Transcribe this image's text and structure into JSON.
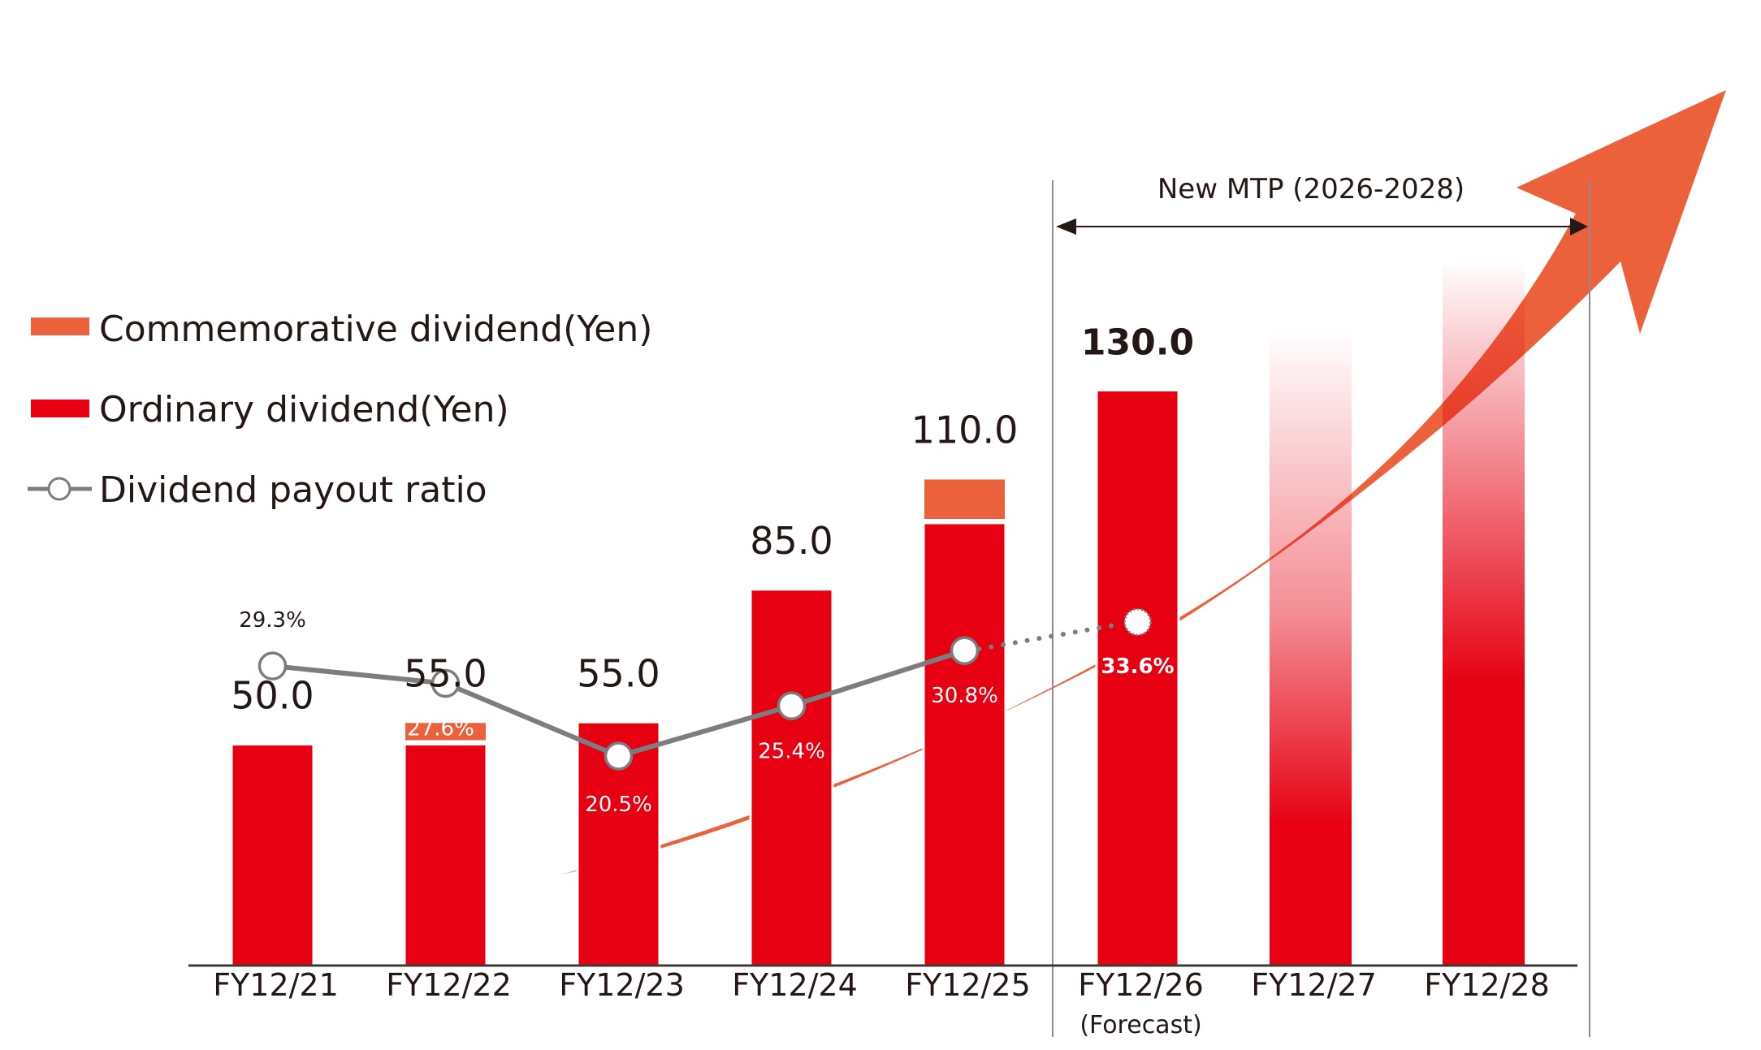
{
  "chart_data": {
    "type": "bar",
    "title": "",
    "xlabel": "",
    "ylabel": "",
    "categories": [
      "FY12/21",
      "FY12/22",
      "FY12/23",
      "FY12/24",
      "FY12/25",
      "FY12/26",
      "FY12/27",
      "FY12/28"
    ],
    "category_sublabels": [
      "",
      "",
      "",
      "",
      "",
      "(Forecast)",
      "",
      ""
    ],
    "series": [
      {
        "name": "Ordinary dividend(Yen)",
        "kind": "bar-stacked",
        "color": "#e60012",
        "values": [
          50,
          50,
          55,
          85,
          100,
          130,
          null,
          null
        ]
      },
      {
        "name": "Commemorative dividend(Yen)",
        "kind": "bar-stacked",
        "color": "#ea613c",
        "values": [
          0,
          5,
          0,
          0,
          10,
          0,
          null,
          null
        ]
      },
      {
        "name": "Dividend payout ratio",
        "kind": "line",
        "unit": "%",
        "color": "#7d7d7d",
        "values": [
          29.3,
          27.6,
          20.5,
          25.4,
          30.8,
          33.6,
          null,
          null
        ],
        "forecast_from_index": 5
      }
    ],
    "total_labels": [
      "50.0",
      "55.0",
      "55.0",
      "85.0",
      "110.0",
      "130.0",
      "",
      ""
    ],
    "ratio_labels": [
      "29.3%",
      "27.6%",
      "20.5%",
      "25.4%",
      "30.8%",
      "33.6%",
      "",
      ""
    ],
    "illustrative_future_bars": {
      "categories": [
        "FY12/27",
        "FY12/28"
      ],
      "note": "values not shown, gradient-faded bars"
    },
    "annotations": [
      {
        "text": "New MTP (2026-2028)",
        "type": "range-arrow",
        "from": "FY12/26",
        "to": "FY12/28"
      },
      {
        "type": "growth-arrow",
        "color": "#ea613c",
        "text": ""
      }
    ],
    "legend": {
      "position": "left",
      "items": [
        {
          "label": "Commemorative dividend(Yen)",
          "symbol": "bar",
          "color": "#ea613c"
        },
        {
          "label": "Ordinary dividend(Yen)",
          "symbol": "bar",
          "color": "#e60012"
        },
        {
          "label": "Dividend payout ratio",
          "symbol": "line-marker",
          "color": "#7d7d7d"
        }
      ]
    },
    "ylim": [
      0,
      140
    ],
    "grid": false
  }
}
